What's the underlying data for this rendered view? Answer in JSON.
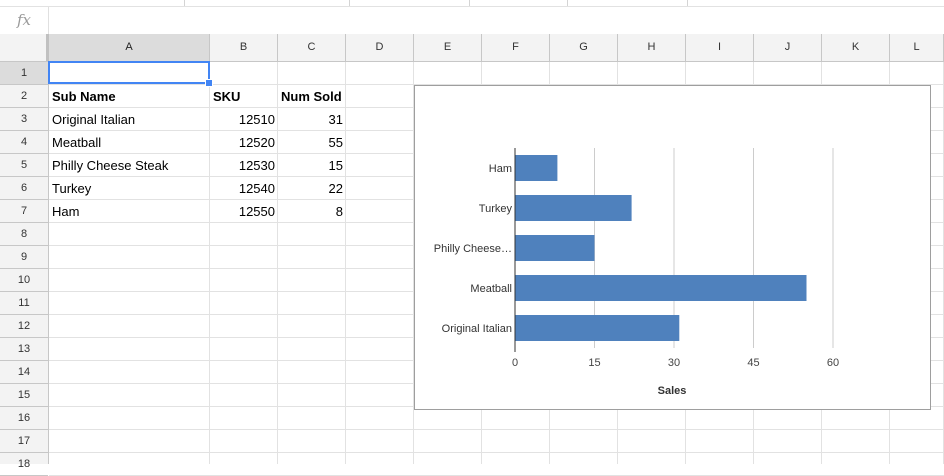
{
  "formula_bar": {
    "icon": "fx-icon",
    "label": "fx",
    "value": ""
  },
  "columns": [
    "A",
    "B",
    "C",
    "D",
    "E",
    "F",
    "G",
    "H",
    "I",
    "J",
    "K",
    "L"
  ],
  "rows": [
    "1",
    "2",
    "3",
    "4",
    "5",
    "6",
    "7",
    "8",
    "9",
    "10",
    "11",
    "12",
    "13",
    "14",
    "15",
    "16",
    "17",
    "18"
  ],
  "selected_cell": "A1",
  "table": {
    "headers": [
      "Sub Name",
      "SKU",
      "Num Sold"
    ],
    "rows": [
      [
        "Original Italian",
        "12510",
        "31"
      ],
      [
        "Meatball",
        "12520",
        "55"
      ],
      [
        "Philly Cheese Steak",
        "12530",
        "15"
      ],
      [
        "Turkey",
        "12540",
        "22"
      ],
      [
        "Ham",
        "12550",
        "8"
      ]
    ]
  },
  "chart_data": {
    "type": "bar",
    "orientation": "horizontal",
    "categories": [
      "Original Italian",
      "Meatball",
      "Philly Cheese…",
      "Turkey",
      "Ham"
    ],
    "values": [
      31,
      55,
      15,
      22,
      8
    ],
    "xlabel": "Sales",
    "xticks": [
      0,
      15,
      30,
      45,
      60
    ],
    "xlim": [
      0,
      60
    ],
    "grid": true,
    "bar_color": "#4f81bd",
    "legend": "none"
  }
}
